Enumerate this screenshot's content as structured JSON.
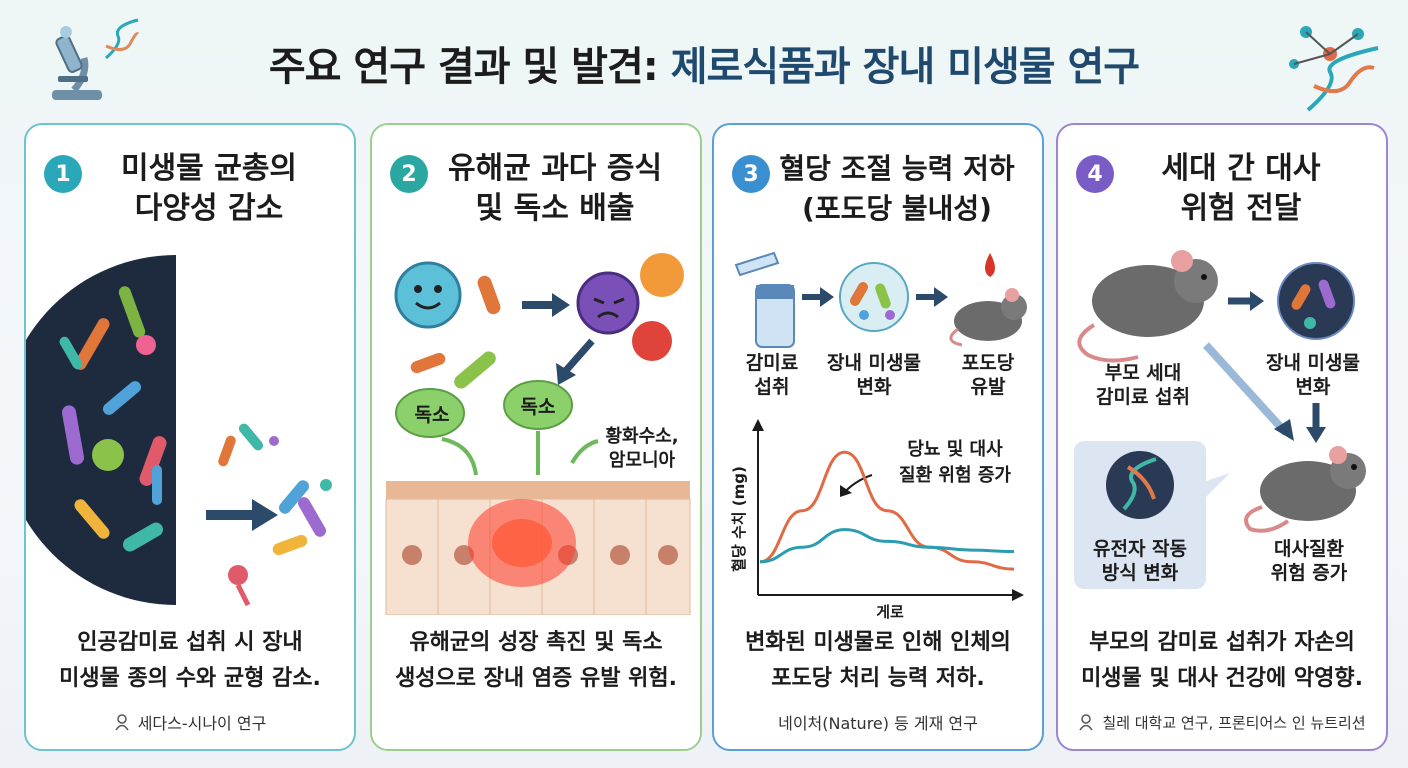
{
  "title": {
    "part1": "주요 연구 결과 및 발견:",
    "part2": "제로식품과 장내 미생물 연구"
  },
  "cards": [
    {
      "number": "1",
      "title_line1": "미생물 균총의",
      "title_line2": "다양성 감소",
      "desc_line1": "인공감미료 섭취 시 장내",
      "desc_line2": "미생물 종의 수와 균형 감소.",
      "source": "세다스-시나이 연구",
      "color": "#2aa7b8"
    },
    {
      "number": "2",
      "title_line1": "유해균 과다 증식",
      "title_line2": "및 독소 배출",
      "labels": {
        "toxin1": "독소",
        "toxin2": "독소",
        "gas_line1": "황화수소,",
        "gas_line2": "암모니아"
      },
      "desc_line1": "유해균의 성장 촉진 및 독소",
      "desc_line2": "생성으로 장내 염증 유발 위험.",
      "color": "#2aa7a0"
    },
    {
      "number": "3",
      "title_line1": "혈당 조절 능력 저하",
      "title_line2": "(포도당 불내성)",
      "flow": {
        "step1_line1": "감미료",
        "step1_line2": "섭취",
        "step2_line1": "장내 미생물",
        "step2_line2": "변화",
        "step3_line1": "포도당",
        "step3_line2": "유발"
      },
      "chart": {
        "ylabel": "혈당 수치 (mg)",
        "xlabel": "게로",
        "annotation_line1": "당뇨 및 대사",
        "annotation_line2": "질환 위험 증가"
      },
      "desc_line1": "변화된 미생물로 인해 인체의",
      "desc_line2": "포도당 처리 능력 저하.",
      "source": "네이처(Nature) 등 게재 연구",
      "color": "#3a8fd1"
    },
    {
      "number": "4",
      "title_line1": "세대 간 대사",
      "title_line2": "위험 전달",
      "labels": {
        "parent_line1": "부모 세대",
        "parent_line2": "감미료 섭취",
        "microbe_line1": "장내 미생물",
        "microbe_line2": "변화",
        "gene_line1": "유전자 작동",
        "gene_line2": "방식 변화",
        "risk_line1": "대사질환",
        "risk_line2": "위험 증가"
      },
      "desc_line1": "부모의 감미료 섭취가 자손의",
      "desc_line2": "미생물 및 대사 건강에 악영향.",
      "source": "칠레 대학교 연구, 프론티어스 인 뉴트리션",
      "color": "#7a5cc7"
    }
  ],
  "chart_data": {
    "type": "line",
    "xlabel": "게로",
    "ylabel": "혈당 수치 (mg)",
    "series": [
      {
        "values": [
          0.2,
          0.55,
          0.95,
          0.55,
          0.3,
          0.2,
          0.15
        ]
      },
      {
        "values": [
          0.2,
          0.3,
          0.42,
          0.34,
          0.3,
          0.28,
          0.27
        ]
      }
    ],
    "annotations": [
      "당뇨 및 대사",
      "질환 위험 증가"
    ]
  }
}
